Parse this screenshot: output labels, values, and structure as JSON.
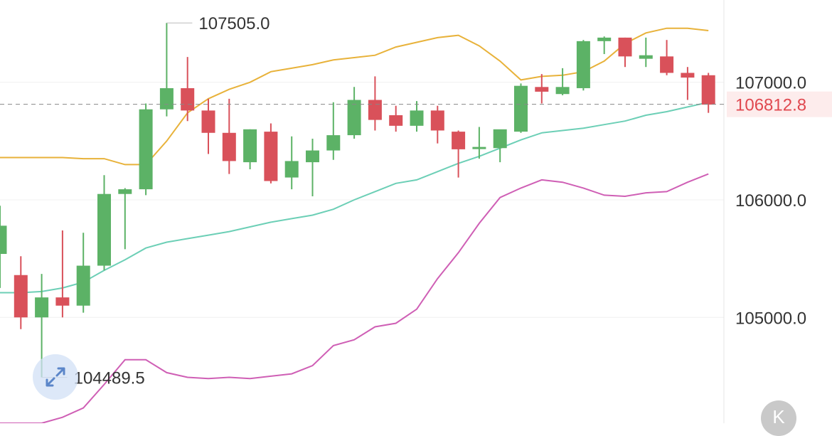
{
  "chart_data": {
    "type": "candlestick",
    "ylim": [
      104100,
      107700
    ],
    "y_ticks": [
      {
        "value": 107000,
        "label": "107000.0"
      },
      {
        "value": 106000,
        "label": "106000.0"
      },
      {
        "value": 105000,
        "label": "105000.0"
      }
    ],
    "current_price": {
      "value": 106812.8,
      "label": "106812.8"
    },
    "annotations": {
      "high": {
        "value": 107505.0,
        "label": "107505.0"
      },
      "low": {
        "value": 104489.5,
        "label": "104489.5"
      }
    },
    "candles": [
      {
        "o": 105540,
        "h": 105950,
        "l": 105250,
        "c": 105780
      },
      {
        "o": 105360,
        "h": 105520,
        "l": 104900,
        "c": 105000
      },
      {
        "o": 105000,
        "h": 105370,
        "l": 104490,
        "c": 105170
      },
      {
        "o": 105170,
        "h": 105740,
        "l": 105000,
        "c": 105100
      },
      {
        "o": 105100,
        "h": 105720,
        "l": 105040,
        "c": 105440
      },
      {
        "o": 105440,
        "h": 106210,
        "l": 105400,
        "c": 106050
      },
      {
        "o": 106050,
        "h": 106100,
        "l": 105580,
        "c": 106090
      },
      {
        "o": 106090,
        "h": 106820,
        "l": 106040,
        "c": 106770
      },
      {
        "o": 106770,
        "h": 107505,
        "l": 106710,
        "c": 106950
      },
      {
        "o": 106950,
        "h": 107215,
        "l": 106670,
        "c": 106760
      },
      {
        "o": 106760,
        "h": 106860,
        "l": 106390,
        "c": 106570
      },
      {
        "o": 106570,
        "h": 106860,
        "l": 106220,
        "c": 106330
      },
      {
        "o": 106320,
        "h": 106600,
        "l": 106260,
        "c": 106600
      },
      {
        "o": 106580,
        "h": 106650,
        "l": 106140,
        "c": 106160
      },
      {
        "o": 106190,
        "h": 106540,
        "l": 106090,
        "c": 106330
      },
      {
        "o": 106320,
        "h": 106520,
        "l": 106030,
        "c": 106420
      },
      {
        "o": 106420,
        "h": 106830,
        "l": 106340,
        "c": 106550
      },
      {
        "o": 106550,
        "h": 106960,
        "l": 106520,
        "c": 106850
      },
      {
        "o": 106850,
        "h": 107050,
        "l": 106590,
        "c": 106680
      },
      {
        "o": 106720,
        "h": 106800,
        "l": 106580,
        "c": 106630
      },
      {
        "o": 106630,
        "h": 106840,
        "l": 106580,
        "c": 106760
      },
      {
        "o": 106760,
        "h": 106800,
        "l": 106480,
        "c": 106590
      },
      {
        "o": 106580,
        "h": 106590,
        "l": 106190,
        "c": 106430
      },
      {
        "o": 106440,
        "h": 106620,
        "l": 106350,
        "c": 106450
      },
      {
        "o": 106440,
        "h": 106590,
        "l": 106320,
        "c": 106600
      },
      {
        "o": 106580,
        "h": 106990,
        "l": 106570,
        "c": 106970
      },
      {
        "o": 106960,
        "h": 107070,
        "l": 106820,
        "c": 106920
      },
      {
        "o": 106900,
        "h": 107120,
        "l": 106890,
        "c": 106960
      },
      {
        "o": 106950,
        "h": 107360,
        "l": 106930,
        "c": 107350
      },
      {
        "o": 107350,
        "h": 107390,
        "l": 107240,
        "c": 107380
      },
      {
        "o": 107380,
        "h": 107380,
        "l": 107130,
        "c": 107220
      },
      {
        "o": 107200,
        "h": 107380,
        "l": 107130,
        "c": 107230
      },
      {
        "o": 107220,
        "h": 107360,
        "l": 107060,
        "c": 107080
      },
      {
        "o": 107080,
        "h": 107130,
        "l": 106850,
        "c": 107040
      },
      {
        "o": 107060,
        "h": 107080,
        "l": 106740,
        "c": 106810
      }
    ],
    "bands": {
      "upper": [
        106360,
        106360,
        106360,
        106360,
        106350,
        106350,
        106300,
        106300,
        106500,
        106740,
        106860,
        106940,
        107000,
        107090,
        107120,
        107150,
        107190,
        107210,
        107230,
        107300,
        107340,
        107380,
        107400,
        107310,
        107180,
        107020,
        107050,
        107060,
        107090,
        107180,
        107330,
        107420,
        107460,
        107460,
        107440
      ],
      "middle": [
        105210,
        105210,
        105220,
        105250,
        105300,
        105400,
        105490,
        105590,
        105640,
        105670,
        105700,
        105730,
        105770,
        105810,
        105840,
        105870,
        105920,
        106000,
        106070,
        106140,
        106170,
        106240,
        106310,
        106370,
        106440,
        106510,
        106570,
        106590,
        106610,
        106640,
        106670,
        106720,
        106750,
        106790,
        106830
      ],
      "lower": [
        104100,
        104100,
        104100,
        104150,
        104230,
        104430,
        104640,
        104640,
        104530,
        104490,
        104480,
        104490,
        104480,
        104500,
        104520,
        104590,
        104760,
        104810,
        104920,
        104950,
        105070,
        105330,
        105550,
        105800,
        106020,
        106100,
        106170,
        106150,
        106100,
        106040,
        106030,
        106060,
        106070,
        106150,
        106220
      ]
    }
  }
}
